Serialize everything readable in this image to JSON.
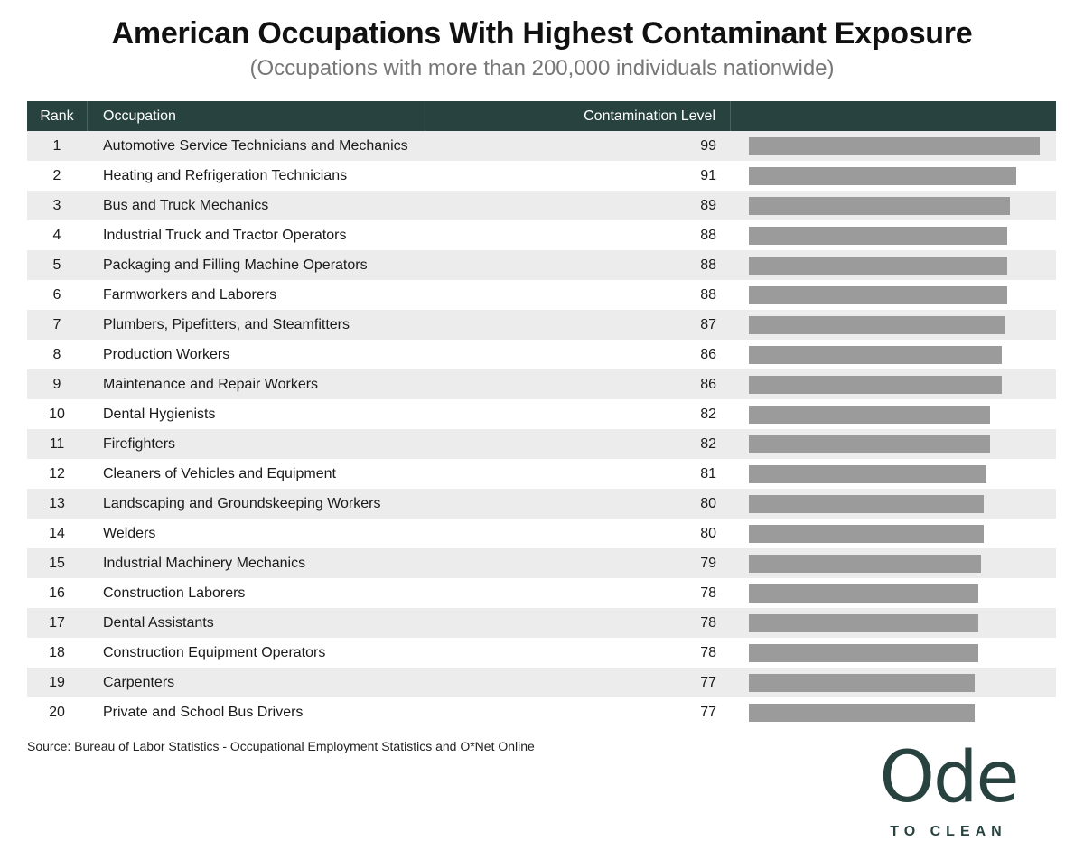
{
  "title": "American Occupations With Highest Contaminant Exposure",
  "subtitle": "(Occupations with more than 200,000 individuals nationwide)",
  "headers": {
    "rank": "Rank",
    "occupation": "Occupation",
    "level": "Contamination Level"
  },
  "source": "Source: Bureau of Labor Statistics - Occupational Employment Statistics and O*Net Online",
  "logo": {
    "main": "Ode",
    "sub": "TO CLEAN"
  },
  "colors": {
    "header_bg": "#27423f",
    "bar": "#9b9b9b",
    "stripe": "#ececec",
    "logo": "#27423f"
  },
  "chart_data": {
    "type": "bar",
    "title": "American Occupations With Highest Contaminant Exposure",
    "subtitle": "(Occupations with more than 200,000 individuals nationwide)",
    "xlabel": "Contamination Level",
    "orientation": "horizontal",
    "xlim": [
      0,
      100
    ],
    "rows": [
      {
        "rank": "1",
        "occupation": "Automotive Service Technicians and Mechanics",
        "value": 99
      },
      {
        "rank": "2",
        "occupation": "Heating and Refrigeration Technicians",
        "value": 91
      },
      {
        "rank": "3",
        "occupation": "Bus and Truck Mechanics",
        "value": 89
      },
      {
        "rank": "4",
        "occupation": "Industrial Truck and Tractor Operators",
        "value": 88
      },
      {
        "rank": "5",
        "occupation": "Packaging and Filling Machine Operators",
        "value": 88
      },
      {
        "rank": "6",
        "occupation": "Farmworkers and Laborers",
        "value": 88
      },
      {
        "rank": "7",
        "occupation": "Plumbers, Pipefitters, and Steamfitters",
        "value": 87
      },
      {
        "rank": "8",
        "occupation": "Production Workers",
        "value": 86
      },
      {
        "rank": "9",
        "occupation": "Maintenance and Repair Workers",
        "value": 86
      },
      {
        "rank": "10",
        "occupation": "Dental Hygienists",
        "value": 82
      },
      {
        "rank": "11",
        "occupation": "Firefighters",
        "value": 82
      },
      {
        "rank": "12",
        "occupation": "Cleaners of Vehicles and Equipment",
        "value": 81
      },
      {
        "rank": "13",
        "occupation": "Landscaping and Groundskeeping Workers",
        "value": 80
      },
      {
        "rank": "14",
        "occupation": "Welders",
        "value": 80
      },
      {
        "rank": "15",
        "occupation": "Industrial Machinery Mechanics",
        "value": 79
      },
      {
        "rank": "16",
        "occupation": "Construction Laborers",
        "value": 78
      },
      {
        "rank": "17",
        "occupation": "Dental Assistants",
        "value": 78
      },
      {
        "rank": "18",
        "occupation": "Construction Equipment Operators",
        "value": 78
      },
      {
        "rank": "19",
        "occupation": "Carpenters",
        "value": 77
      },
      {
        "rank": "20",
        "occupation": "Private and School Bus Drivers",
        "value": 77
      }
    ]
  }
}
